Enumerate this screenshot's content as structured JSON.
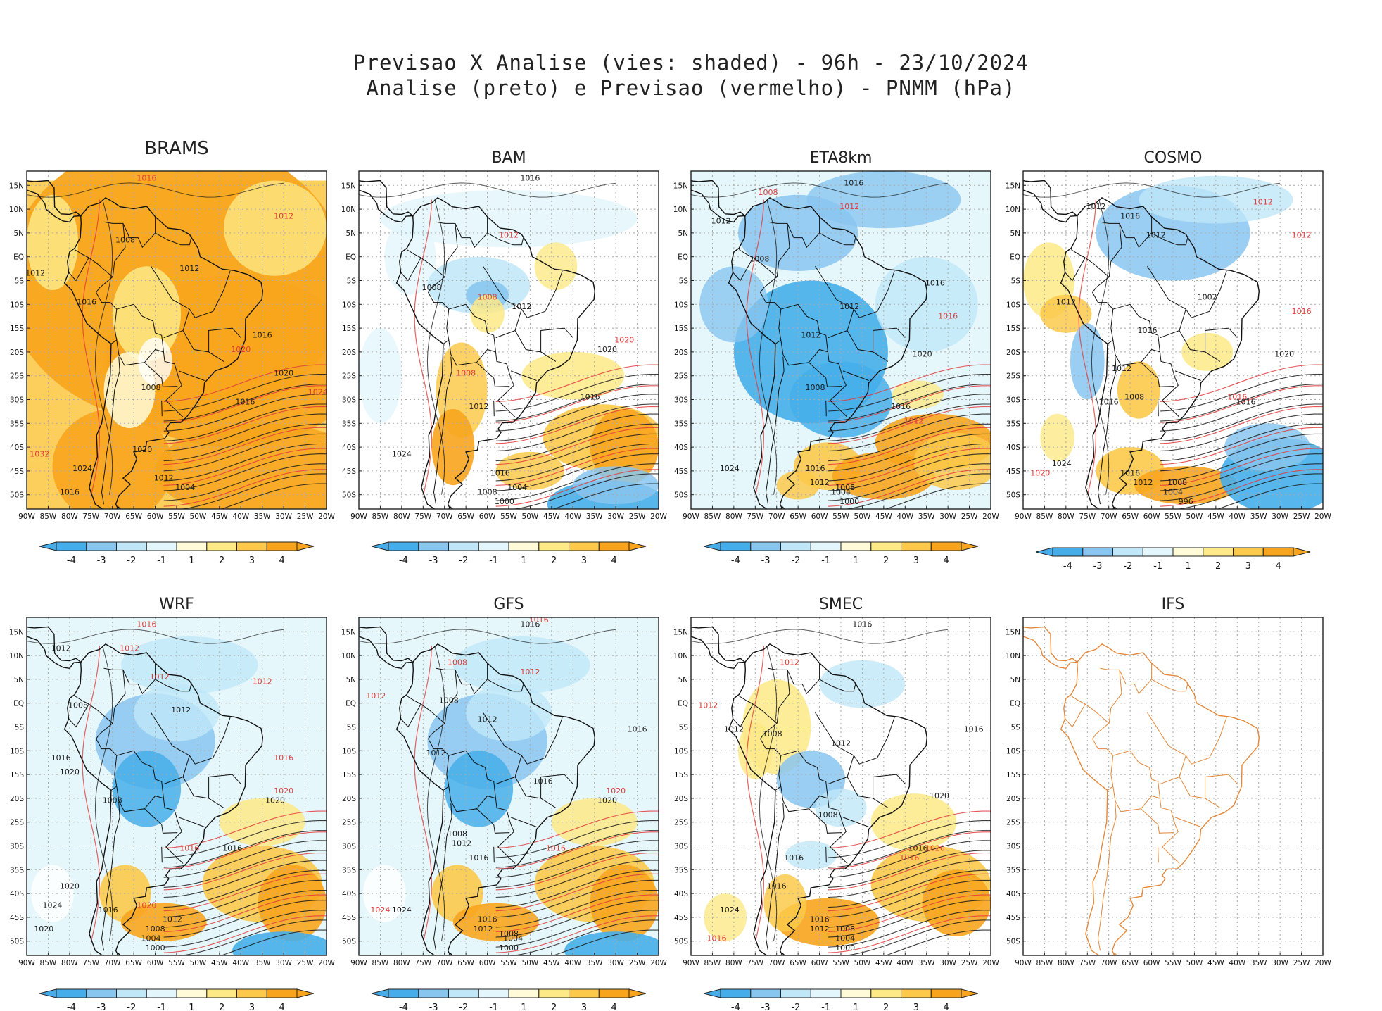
{
  "title": {
    "line1": "Previsao X Analise (vies: shaded) - 96h - 23/10/2024",
    "line2": "Analise (preto) e Previsao (vermelho) - PNMM (hPa)"
  },
  "colors": {
    "neg4": "#45aeea",
    "neg3": "#88c6f0",
    "neg2": "#bfe7f8",
    "neg1": "#e3f6fc",
    "pos1": "#fffbd9",
    "pos2": "#fde986",
    "pos3": "#fcc94a",
    "pos4": "#f8a51d",
    "analysis": "#1a1a1a",
    "forecast": "#e23a3a",
    "coast": "#111111",
    "ifs_coast": "#e3883a",
    "grid": "#aaaaaa"
  },
  "lon_labels": [
    "90W",
    "85W",
    "80W",
    "75W",
    "70W",
    "65W",
    "60W",
    "55W",
    "50W",
    "45W",
    "40W",
    "35W",
    "30W",
    "25W",
    "20W"
  ],
  "lat_labels": [
    "15N",
    "10N",
    "5N",
    "EQ",
    "5S",
    "10S",
    "15S",
    "20S",
    "25S",
    "30S",
    "35S",
    "40S",
    "45S",
    "50S"
  ],
  "colorbar_labels": [
    "-4",
    "-3",
    "-2",
    "-1",
    "1",
    "2",
    "3",
    "4"
  ],
  "panels": [
    {
      "name": "BRAMS",
      "bias": "strong-positive",
      "labels": [
        {
          "t": "1016",
          "lon": -76,
          "lat": -10,
          "c": "a"
        },
        {
          "t": "1008",
          "lon": -67,
          "lat": 3,
          "c": "a"
        },
        {
          "t": "1012",
          "lon": -52,
          "lat": -3,
          "c": "a"
        },
        {
          "t": "1016",
          "lon": -35,
          "lat": -17,
          "c": "a"
        },
        {
          "t": "1020",
          "lon": -30,
          "lat": -25,
          "c": "a"
        },
        {
          "t": "1016",
          "lon": -39,
          "lat": -31,
          "c": "a"
        },
        {
          "t": "1008",
          "lon": -61,
          "lat": -28,
          "c": "a"
        },
        {
          "t": "1020",
          "lon": -63,
          "lat": -41,
          "c": "a"
        },
        {
          "t": "1024",
          "lon": -77,
          "lat": -45,
          "c": "a"
        },
        {
          "t": "1012",
          "lon": -58,
          "lat": -47,
          "c": "a"
        },
        {
          "t": "1004",
          "lon": -53,
          "lat": -49,
          "c": "a"
        },
        {
          "t": "1016",
          "lon": -80,
          "lat": -50,
          "c": "a"
        },
        {
          "t": "1012",
          "lon": -88,
          "lat": -4,
          "c": "a"
        },
        {
          "t": "1016",
          "lon": -62,
          "lat": 16,
          "c": "f"
        },
        {
          "t": "1012",
          "lon": -30,
          "lat": 8,
          "c": "f"
        },
        {
          "t": "1024",
          "lon": -22,
          "lat": -29,
          "c": "f"
        },
        {
          "t": "1032",
          "lon": -87,
          "lat": -42,
          "c": "f"
        },
        {
          "t": "1020",
          "lon": -40,
          "lat": -20,
          "c": "f"
        }
      ]
    },
    {
      "name": "BAM",
      "bias": "neutral",
      "labels": [
        {
          "t": "1016",
          "lon": -50,
          "lat": 16,
          "c": "a"
        },
        {
          "t": "1008",
          "lon": -73,
          "lat": -7,
          "c": "a"
        },
        {
          "t": "1012",
          "lon": -52,
          "lat": -11,
          "c": "a"
        },
        {
          "t": "1016",
          "lon": -36,
          "lat": -30,
          "c": "a"
        },
        {
          "t": "1020",
          "lon": -32,
          "lat": -20,
          "c": "a"
        },
        {
          "t": "1024",
          "lon": -80,
          "lat": -42,
          "c": "a"
        },
        {
          "t": "1016",
          "lon": -57,
          "lat": -46,
          "c": "a"
        },
        {
          "t": "1008",
          "lon": -60,
          "lat": -50,
          "c": "a"
        },
        {
          "t": "1004",
          "lon": -53,
          "lat": -49,
          "c": "a"
        },
        {
          "t": "1000",
          "lon": -56,
          "lat": -52,
          "c": "a"
        },
        {
          "t": "1012",
          "lon": -62,
          "lat": -32,
          "c": "a"
        },
        {
          "t": "1008",
          "lon": -65,
          "lat": -25,
          "c": "f"
        },
        {
          "t": "1020",
          "lon": -28,
          "lat": -18,
          "c": "f"
        },
        {
          "t": "1012",
          "lon": -55,
          "lat": 4,
          "c": "f"
        },
        {
          "t": "1008",
          "lon": -60,
          "lat": -9,
          "c": "f"
        }
      ]
    },
    {
      "name": "ETA8km",
      "bias": "negative",
      "labels": [
        {
          "t": "1016",
          "lon": -52,
          "lat": 15,
          "c": "a"
        },
        {
          "t": "1012",
          "lon": -83,
          "lat": 7,
          "c": "a"
        },
        {
          "t": "1008",
          "lon": -74,
          "lat": -1,
          "c": "a"
        },
        {
          "t": "1016",
          "lon": -33,
          "lat": -6,
          "c": "a"
        },
        {
          "t": "1012",
          "lon": -53,
          "lat": -11,
          "c": "a"
        },
        {
          "t": "1008",
          "lon": -61,
          "lat": -28,
          "c": "a"
        },
        {
          "t": "1016",
          "lon": -41,
          "lat": -32,
          "c": "a"
        },
        {
          "t": "1020",
          "lon": -36,
          "lat": -21,
          "c": "a"
        },
        {
          "t": "1024",
          "lon": -81,
          "lat": -45,
          "c": "a"
        },
        {
          "t": "1016",
          "lon": -61,
          "lat": -45,
          "c": "a"
        },
        {
          "t": "1012",
          "lon": -60,
          "lat": -48,
          "c": "a"
        },
        {
          "t": "1008",
          "lon": -54,
          "lat": -49,
          "c": "a"
        },
        {
          "t": "1004",
          "lon": -55,
          "lat": -50,
          "c": "a"
        },
        {
          "t": "1000",
          "lon": -53,
          "lat": -52,
          "c": "a"
        },
        {
          "t": "1012",
          "lon": -62,
          "lat": -17,
          "c": "a"
        },
        {
          "t": "1008",
          "lon": -72,
          "lat": 13,
          "c": "f"
        },
        {
          "t": "1012",
          "lon": -53,
          "lat": 10,
          "c": "f"
        },
        {
          "t": "1016",
          "lon": -30,
          "lat": -13,
          "c": "f"
        },
        {
          "t": "1012",
          "lon": -38,
          "lat": -35,
          "c": "f"
        }
      ]
    },
    {
      "name": "COSMO",
      "bias": "mixed",
      "labels": [
        {
          "t": "1012",
          "lon": -73,
          "lat": 10,
          "c": "a"
        },
        {
          "t": "1016",
          "lon": -65,
          "lat": 8,
          "c": "a"
        },
        {
          "t": "1012",
          "lon": -59,
          "lat": 4,
          "c": "a"
        },
        {
          "t": "1012",
          "lon": -80,
          "lat": -10,
          "c": "a"
        },
        {
          "t": "1016",
          "lon": -61,
          "lat": -16,
          "c": "a"
        },
        {
          "t": "1012",
          "lon": -67,
          "lat": -24,
          "c": "a"
        },
        {
          "t": "1008",
          "lon": -64,
          "lat": -30,
          "c": "a"
        },
        {
          "t": "1016",
          "lon": -70,
          "lat": -31,
          "c": "a"
        },
        {
          "t": "1020",
          "lon": -29,
          "lat": -21,
          "c": "a"
        },
        {
          "t": "1016",
          "lon": -38,
          "lat": -31,
          "c": "a"
        },
        {
          "t": "1024",
          "lon": -81,
          "lat": -44,
          "c": "a"
        },
        {
          "t": "1016",
          "lon": -65,
          "lat": -46,
          "c": "a"
        },
        {
          "t": "1012",
          "lon": -62,
          "lat": -48,
          "c": "a"
        },
        {
          "t": "1008",
          "lon": -54,
          "lat": -48,
          "c": "a"
        },
        {
          "t": "1004",
          "lon": -55,
          "lat": -50,
          "c": "a"
        },
        {
          "t": "996",
          "lon": -52,
          "lat": -52,
          "c": "a"
        },
        {
          "t": "1002",
          "lon": -47,
          "lat": -9,
          "c": "a"
        },
        {
          "t": "1012",
          "lon": -34,
          "lat": 11,
          "c": "f"
        },
        {
          "t": "1012",
          "lon": -25,
          "lat": 4,
          "c": "f"
        },
        {
          "t": "1016",
          "lon": -25,
          "lat": -12,
          "c": "f"
        },
        {
          "t": "1020",
          "lon": -86,
          "lat": -46,
          "c": "f"
        },
        {
          "t": "1016",
          "lon": -40,
          "lat": -30,
          "c": "f"
        }
      ]
    },
    {
      "name": "WRF",
      "bias": "negative-mixed",
      "labels": [
        {
          "t": "1016",
          "lon": -62,
          "lat": 16,
          "c": "f"
        },
        {
          "t": "1012",
          "lon": -66,
          "lat": 11,
          "c": "f"
        },
        {
          "t": "1012",
          "lon": -59,
          "lat": 5,
          "c": "f"
        },
        {
          "t": "1012",
          "lon": -82,
          "lat": 11,
          "c": "a"
        },
        {
          "t": "1008",
          "lon": -78,
          "lat": -1,
          "c": "a"
        },
        {
          "t": "1012",
          "lon": -54,
          "lat": -2,
          "c": "a"
        },
        {
          "t": "1016",
          "lon": -82,
          "lat": -12,
          "c": "a"
        },
        {
          "t": "1020",
          "lon": -80,
          "lat": -15,
          "c": "a"
        },
        {
          "t": "1008",
          "lon": -70,
          "lat": -21,
          "c": "a"
        },
        {
          "t": "1016",
          "lon": -42,
          "lat": -31,
          "c": "a"
        },
        {
          "t": "1020",
          "lon": -32,
          "lat": -21,
          "c": "a"
        },
        {
          "t": "1020",
          "lon": -80,
          "lat": -39,
          "c": "a"
        },
        {
          "t": "1024",
          "lon": -84,
          "lat": -43,
          "c": "a"
        },
        {
          "t": "1020",
          "lon": -86,
          "lat": -48,
          "c": "a"
        },
        {
          "t": "1016",
          "lon": -71,
          "lat": -44,
          "c": "a"
        },
        {
          "t": "1012",
          "lon": -56,
          "lat": -46,
          "c": "a"
        },
        {
          "t": "1008",
          "lon": -60,
          "lat": -48,
          "c": "a"
        },
        {
          "t": "1004",
          "lon": -61,
          "lat": -50,
          "c": "a"
        },
        {
          "t": "1000",
          "lon": -60,
          "lat": -52,
          "c": "a"
        },
        {
          "t": "1016",
          "lon": -30,
          "lat": -12,
          "c": "f"
        },
        {
          "t": "1012",
          "lon": -35,
          "lat": 4,
          "c": "f"
        },
        {
          "t": "1020",
          "lon": -30,
          "lat": -19,
          "c": "f"
        },
        {
          "t": "1016",
          "lon": -52,
          "lat": -31,
          "c": "f"
        },
        {
          "t": "1020",
          "lon": -62,
          "lat": -43,
          "c": "f"
        }
      ]
    },
    {
      "name": "GFS",
      "bias": "negative-mixed",
      "labels": [
        {
          "t": "1016",
          "lon": -50,
          "lat": 16,
          "c": "a"
        },
        {
          "t": "1016",
          "lon": -48,
          "lat": 17,
          "c": "f"
        },
        {
          "t": "1008",
          "lon": -67,
          "lat": 8,
          "c": "f"
        },
        {
          "t": "1012",
          "lon": -50,
          "lat": 6,
          "c": "f"
        },
        {
          "t": "1008",
          "lon": -69,
          "lat": 0,
          "c": "a"
        },
        {
          "t": "1012",
          "lon": -60,
          "lat": -4,
          "c": "a"
        },
        {
          "t": "1016",
          "lon": -25,
          "lat": -6,
          "c": "a"
        },
        {
          "t": "1012",
          "lon": -72,
          "lat": -11,
          "c": "a"
        },
        {
          "t": "1016",
          "lon": -47,
          "lat": -17,
          "c": "a"
        },
        {
          "t": "1020",
          "lon": -30,
          "lat": -19,
          "c": "f"
        },
        {
          "t": "1020",
          "lon": -32,
          "lat": -21,
          "c": "a"
        },
        {
          "t": "1008",
          "lon": -67,
          "lat": -28,
          "c": "a"
        },
        {
          "t": "1012",
          "lon": -66,
          "lat": -30,
          "c": "a"
        },
        {
          "t": "1016",
          "lon": -44,
          "lat": -31,
          "c": "f"
        },
        {
          "t": "1016",
          "lon": -62,
          "lat": -33,
          "c": "a"
        },
        {
          "t": "1024",
          "lon": -80,
          "lat": -44,
          "c": "a"
        },
        {
          "t": "1024",
          "lon": -85,
          "lat": -44,
          "c": "f"
        },
        {
          "t": "1016",
          "lon": -60,
          "lat": -46,
          "c": "a"
        },
        {
          "t": "1012",
          "lon": -61,
          "lat": -48,
          "c": "a"
        },
        {
          "t": "1008",
          "lon": -55,
          "lat": -49,
          "c": "a"
        },
        {
          "t": "1004",
          "lon": -54,
          "lat": -50,
          "c": "a"
        },
        {
          "t": "1000",
          "lon": -55,
          "lat": -52,
          "c": "a"
        },
        {
          "t": "1012",
          "lon": -86,
          "lat": 1,
          "c": "f"
        }
      ]
    },
    {
      "name": "SMEC",
      "bias": "neutral-positive",
      "labels": [
        {
          "t": "1016",
          "lon": -50,
          "lat": 16,
          "c": "a"
        },
        {
          "t": "1012",
          "lon": -67,
          "lat": 8,
          "c": "f"
        },
        {
          "t": "1012",
          "lon": -80,
          "lat": -6,
          "c": "a"
        },
        {
          "t": "1008",
          "lon": -71,
          "lat": -7,
          "c": "a"
        },
        {
          "t": "1016",
          "lon": -24,
          "lat": -6,
          "c": "a"
        },
        {
          "t": "1012",
          "lon": -55,
          "lat": -9,
          "c": "a"
        },
        {
          "t": "1008",
          "lon": -58,
          "lat": -24,
          "c": "a"
        },
        {
          "t": "1020",
          "lon": -32,
          "lat": -20,
          "c": "a"
        },
        {
          "t": "1016",
          "lon": -37,
          "lat": -31,
          "c": "a"
        },
        {
          "t": "1020",
          "lon": -33,
          "lat": -31,
          "c": "f"
        },
        {
          "t": "1016",
          "lon": -39,
          "lat": -33,
          "c": "f"
        },
        {
          "t": "1016",
          "lon": -66,
          "lat": -33,
          "c": "a"
        },
        {
          "t": "1016",
          "lon": -70,
          "lat": -39,
          "c": "a"
        },
        {
          "t": "1024",
          "lon": -81,
          "lat": -44,
          "c": "a"
        },
        {
          "t": "1016",
          "lon": -60,
          "lat": -46,
          "c": "a"
        },
        {
          "t": "1012",
          "lon": -60,
          "lat": -48,
          "c": "a"
        },
        {
          "t": "1008",
          "lon": -54,
          "lat": -48,
          "c": "a"
        },
        {
          "t": "1004",
          "lon": -54,
          "lat": -50,
          "c": "a"
        },
        {
          "t": "1000",
          "lon": -54,
          "lat": -52,
          "c": "a"
        },
        {
          "t": "1012",
          "lon": -86,
          "lat": -1,
          "c": "f"
        },
        {
          "t": "1016",
          "lon": -84,
          "lat": -50,
          "c": "f"
        }
      ]
    },
    {
      "name": "IFS",
      "bias": "none",
      "labels": []
    }
  ]
}
